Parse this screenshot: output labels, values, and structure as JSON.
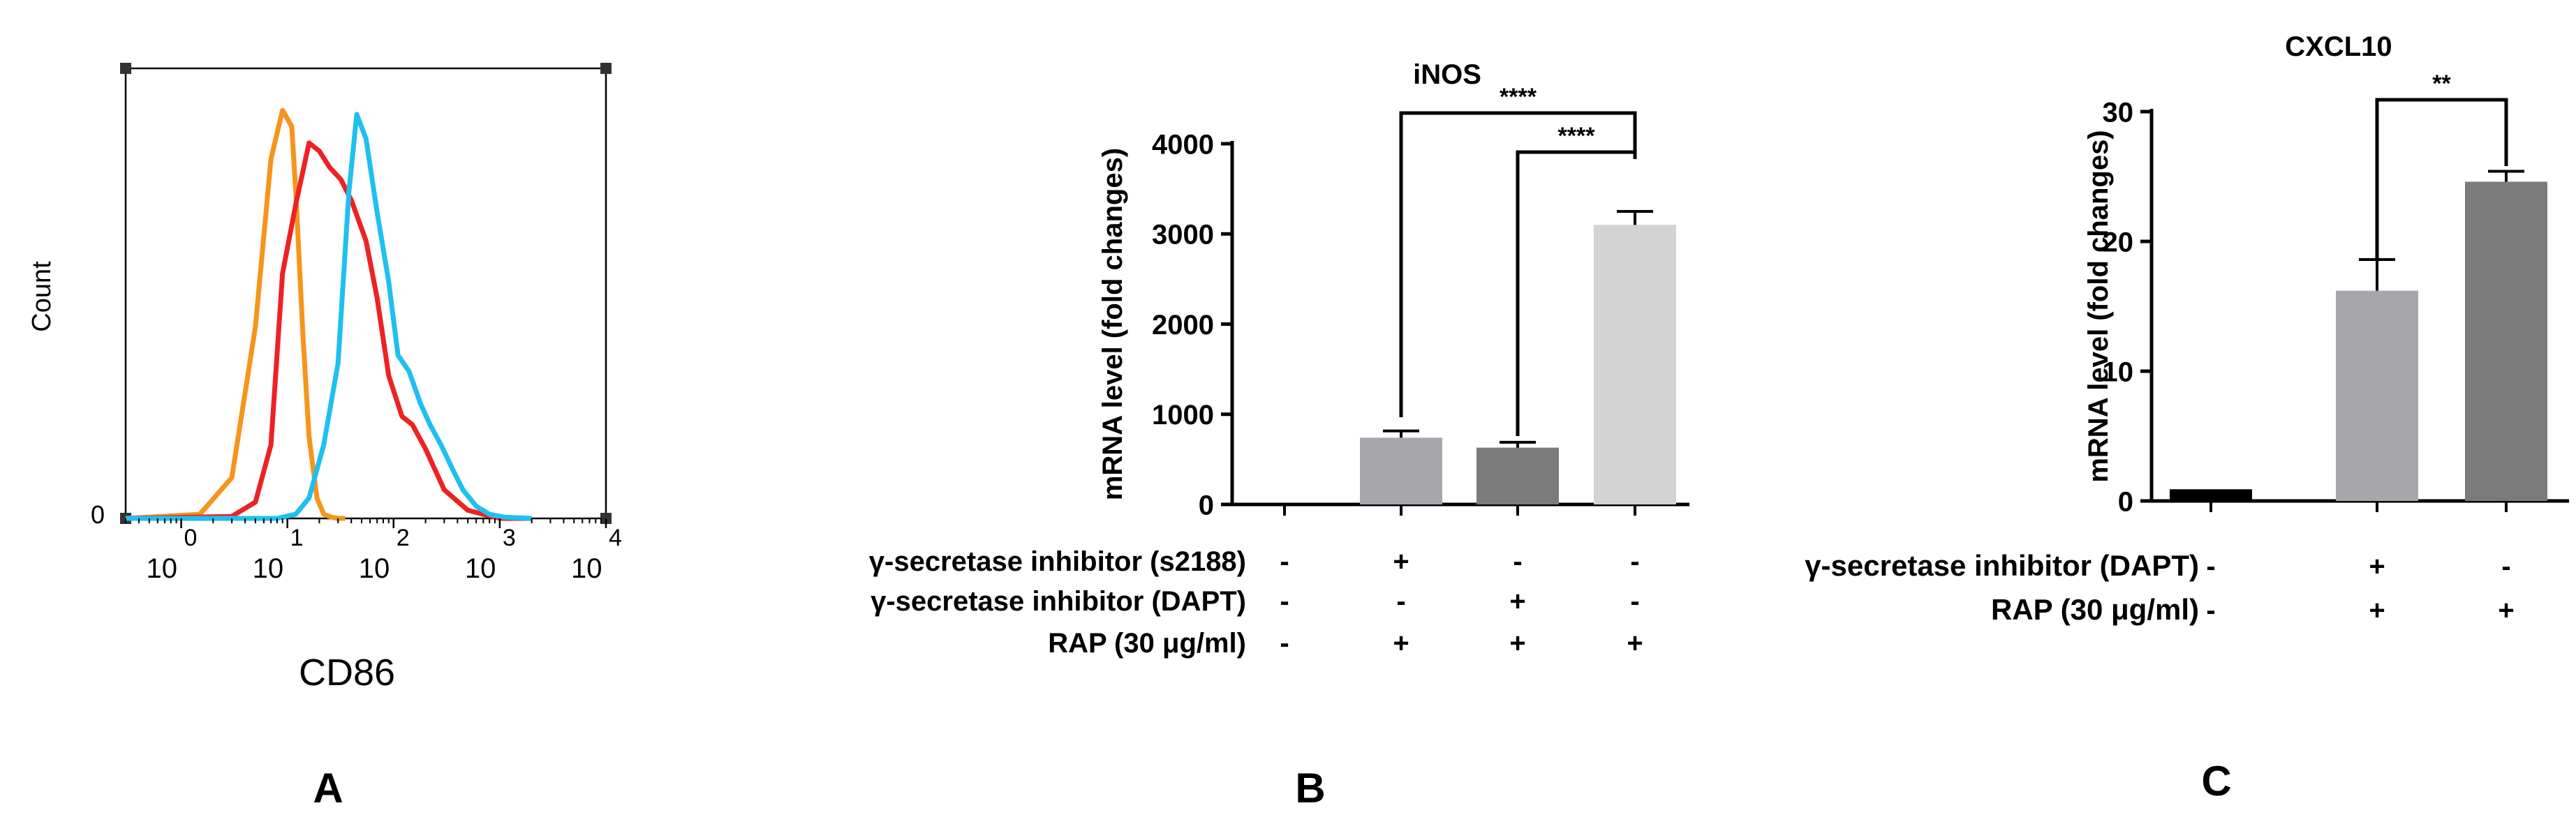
{
  "colors": {
    "orange": "#f7941d",
    "red": "#ed2224",
    "cyan": "#1fc0f0",
    "bar_black": "#000000",
    "bar_mid": "#a7a7ab",
    "bar_dark": "#7b7b7b",
    "bar_light": "#d3d3d3"
  },
  "panels": {
    "a": {
      "label": "A"
    },
    "b": {
      "label": "B"
    },
    "c": {
      "label": "C"
    }
  },
  "chart_data": [
    {
      "id": "A",
      "type": "line",
      "title": "",
      "xlabel": "CD86",
      "ylabel": "Count",
      "xscale": "log",
      "xlim": [
        0.3,
        10000
      ],
      "ylim": [
        0,
        100
      ],
      "y_ticks": [
        "0"
      ],
      "x_ticks": [
        {
          "value": 1,
          "base": "10",
          "exp": "0"
        },
        {
          "value": 10,
          "base": "10",
          "exp": "1"
        },
        {
          "value": 100,
          "base": "10",
          "exp": "2"
        },
        {
          "value": 1000,
          "base": "10",
          "exp": "3"
        },
        {
          "value": 10000,
          "base": "10",
          "exp": "4"
        }
      ],
      "series": [
        {
          "name": "orange",
          "x": [
            0.3,
            1.5,
            3,
            5,
            7,
            9,
            11,
            12,
            14,
            16,
            19,
            22,
            26,
            30,
            35
          ],
          "y": [
            0,
            1,
            10,
            47,
            88,
            100,
            96,
            80,
            45,
            20,
            5,
            1,
            0.3,
            0,
            0
          ]
        },
        {
          "name": "red",
          "x": [
            0.3,
            3,
            5,
            7,
            9,
            12,
            16,
            20,
            25,
            32,
            40,
            55,
            70,
            90,
            120,
            150,
            200,
            300,
            500,
            700,
            1000,
            2000
          ],
          "y": [
            0,
            0.5,
            4,
            18,
            60,
            77,
            92,
            90,
            86,
            83,
            78,
            68,
            54,
            35,
            25,
            23,
            17,
            7,
            2,
            1,
            0,
            0
          ]
        },
        {
          "name": "cyan",
          "x": [
            0.3,
            8,
            12,
            16,
            22,
            30,
            38,
            45,
            55,
            70,
            90,
            110,
            140,
            180,
            220,
            280,
            360,
            450,
            600,
            800,
            1100,
            2000
          ],
          "y": [
            0,
            0,
            1,
            5,
            18,
            38,
            80,
            99,
            93,
            75,
            58,
            40,
            36,
            28,
            23,
            18,
            12,
            7,
            3,
            1,
            0.3,
            0
          ]
        }
      ]
    },
    {
      "id": "B",
      "type": "bar",
      "title": "iNOS",
      "ylabel": "mRNA level (fold changes)",
      "ylim": [
        0,
        4000
      ],
      "y_ticks": [
        0,
        1000,
        2000,
        3000,
        4000
      ],
      "values": [
        0,
        740,
        630,
        3100
      ],
      "errors": [
        0,
        75,
        60,
        150
      ],
      "bar_colors": [
        "#000000",
        "#a7a7ab",
        "#7b7b7b",
        "#d3d3d3"
      ],
      "conditions": [
        {
          "label": "γ-secretase inhibitor (s2188)",
          "signs": [
            "-",
            "+",
            "-",
            "-"
          ]
        },
        {
          "label": "γ-secretase inhibitor (DAPT)",
          "signs": [
            "-",
            "-",
            "+",
            "-"
          ]
        },
        {
          "label": "RAP (30 μg/ml)",
          "signs": [
            "-",
            "+",
            "+",
            "+"
          ]
        }
      ],
      "significance": [
        {
          "from": 1,
          "to": 3,
          "label": "****"
        },
        {
          "from": 2,
          "to": 3,
          "label": "****"
        }
      ]
    },
    {
      "id": "C",
      "type": "bar",
      "title": "CXCL10",
      "ylabel": "mRNA level (fold changes)",
      "ylim": [
        0,
        30
      ],
      "y_ticks": [
        0,
        10,
        20,
        30
      ],
      "values": [
        0.9,
        16.2,
        24.6
      ],
      "errors": [
        0,
        2.4,
        0.8
      ],
      "bar_colors": [
        "#000000",
        "#a7a7ab",
        "#7b7b7b"
      ],
      "conditions": [
        {
          "label": "γ-secretase inhibitor (DAPT)",
          "signs": [
            "-",
            "+",
            "-"
          ]
        },
        {
          "label": "RAP (30 μg/ml)",
          "signs": [
            "-",
            "+",
            "+"
          ]
        }
      ],
      "significance": [
        {
          "from": 1,
          "to": 2,
          "label": "**"
        }
      ]
    }
  ]
}
